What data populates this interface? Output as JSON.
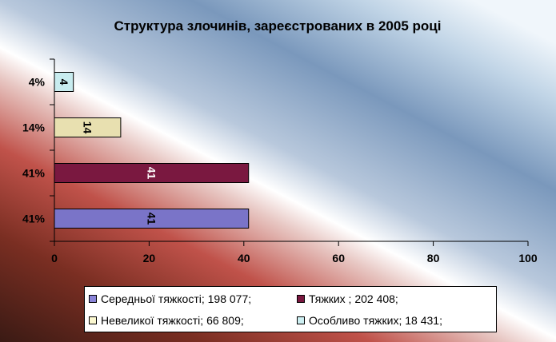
{
  "chart_data": {
    "type": "bar",
    "orientation": "horizontal",
    "title": "Структура злочинів, зареєстрованих в 2005 році",
    "categories": [
      "41%",
      "41%",
      "14%",
      "4%"
    ],
    "values": [
      41,
      41,
      14,
      4
    ],
    "bar_labels": [
      "41",
      "41",
      "14",
      "4"
    ],
    "bar_colors": [
      "#7a74c8",
      "#7a1840",
      "#e8e0b0",
      "#c8ecef"
    ],
    "bar_label_colors": [
      "#000000",
      "#ffffff",
      "#000000",
      "#000000"
    ],
    "xlim": [
      0,
      100
    ],
    "x_ticks": [
      "0",
      "20",
      "40",
      "60",
      "80",
      "100"
    ],
    "grid": false,
    "legend_position": "bottom",
    "legend": [
      {
        "label": "Середньої тяжкості; 198 077;",
        "color": "#8a84d8"
      },
      {
        "label": "Тяжких ; 202 408;",
        "color": "#7a1840"
      },
      {
        "label": "Невеликої тяжкості; 66 809;",
        "color": "#fbf8d0"
      },
      {
        "label": "Особливо тяжких; 18 431;",
        "color": "#cdeff2"
      }
    ]
  }
}
